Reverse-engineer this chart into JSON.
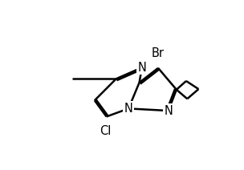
{
  "bg": "#ffffff",
  "lw": 1.8,
  "fs": 10.5,
  "xlim": [
    -0.5,
    10.8
  ],
  "ylim": [
    -0.5,
    7.5
  ]
}
